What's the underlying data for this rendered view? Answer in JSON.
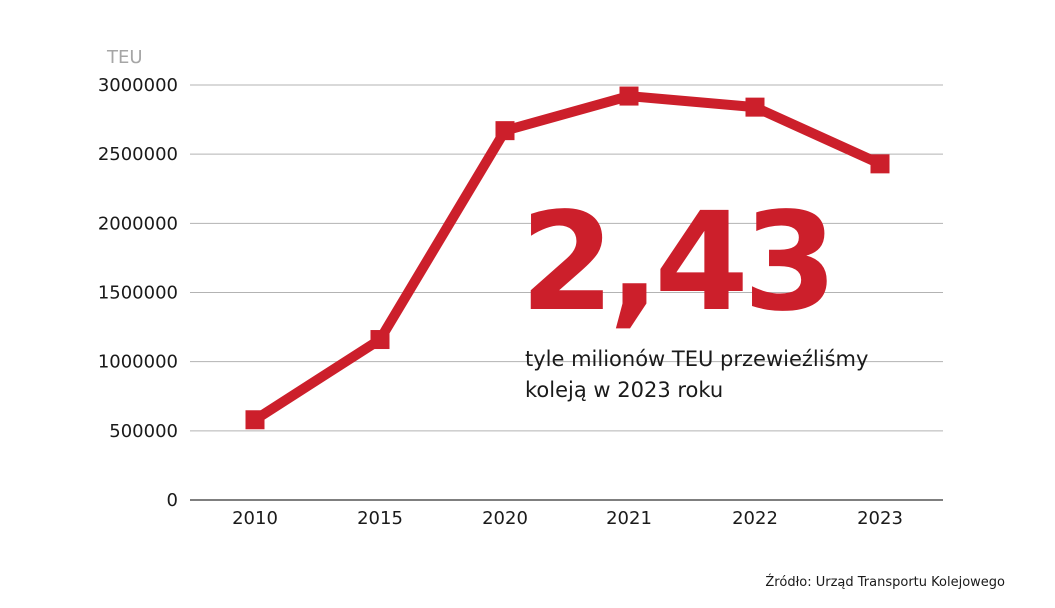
{
  "colors": {
    "series": "#cc1f2b",
    "grid": "#b3b3b3",
    "axis": "#333333",
    "highlight": "#cc1f2b"
  },
  "chart_data": {
    "type": "line",
    "unit_label": "TEU",
    "categories": [
      "2010",
      "2015",
      "2020",
      "2021",
      "2022",
      "2023"
    ],
    "series": [
      {
        "values": [
          580000,
          1160000,
          2670000,
          2920000,
          2840000,
          2430000
        ]
      }
    ],
    "ylim": [
      0,
      3000000
    ],
    "yticks": [
      0,
      500000,
      1000000,
      1500000,
      2000000,
      2500000,
      3000000
    ],
    "grid": true,
    "marker": "square"
  },
  "highlight": {
    "value": "2,43",
    "caption_line1": "tyle milionów TEU przewieźliśmy",
    "caption_line2": "koleją w 2023 roku"
  },
  "source": "Źródło: Urząd Transportu Kolejowego"
}
